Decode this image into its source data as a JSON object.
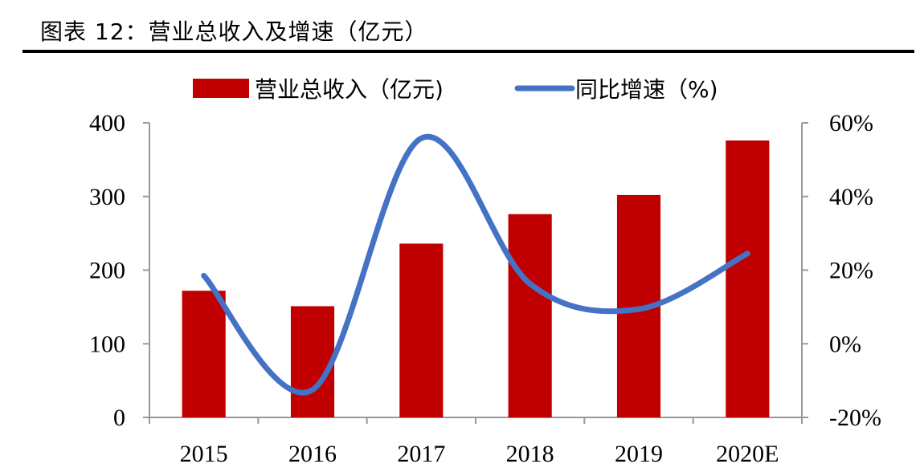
{
  "figure_title": "图表 12：营业总收入及增速（亿元）",
  "chart_data": {
    "type": "bar",
    "categories": [
      "2015",
      "2016",
      "2017",
      "2018",
      "2019",
      "2020E"
    ],
    "series": [
      {
        "name": "营业总收入（亿元)",
        "type": "bar",
        "axis": "left",
        "color": "#C00000",
        "values": [
          172,
          151,
          236,
          276,
          302,
          376
        ]
      },
      {
        "name": "同比增速（%)",
        "type": "line",
        "axis": "right",
        "color": "#4472C4",
        "values": [
          18.5,
          -12.5,
          55.8,
          16.3,
          9.4,
          24.5
        ]
      }
    ],
    "y_left": {
      "min": 0,
      "max": 400,
      "ticks": [
        "0",
        "100",
        "200",
        "300",
        "400"
      ]
    },
    "y_right": {
      "min": -20,
      "max": 60,
      "ticks": [
        "-20%",
        "0%",
        "20%",
        "40%",
        "60%"
      ]
    },
    "legend": {
      "position": "top"
    },
    "grid": false
  }
}
